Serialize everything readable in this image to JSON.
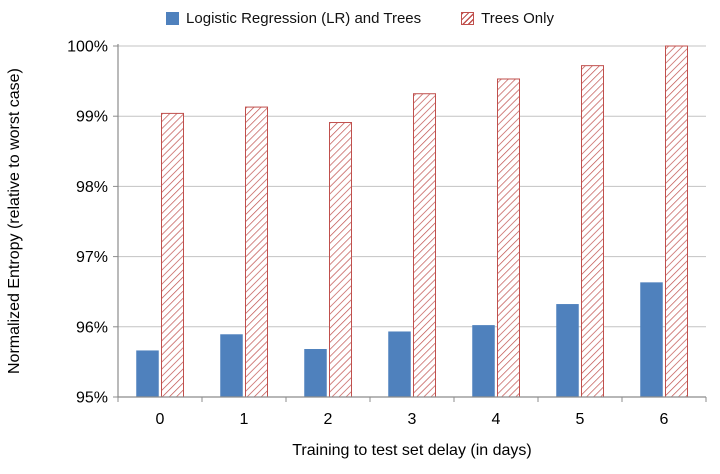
{
  "chart_data": {
    "type": "bar",
    "title": "",
    "xlabel": "Training to test set delay (in days)",
    "ylabel": "Normalized Entropy (relative to worst case)",
    "categories": [
      "0",
      "1",
      "2",
      "3",
      "4",
      "5",
      "6"
    ],
    "series": [
      {
        "name": "Logistic Regression (LR) and Trees",
        "color": "#4f81bd",
        "pattern": "solid",
        "values": [
          95.66,
          95.89,
          95.68,
          95.93,
          96.02,
          96.32,
          96.63
        ]
      },
      {
        "name": "Trees Only",
        "color": "#c0504d",
        "pattern": "diagonal-hatch",
        "values": [
          99.04,
          99.13,
          98.91,
          99.32,
          99.53,
          99.72,
          100.0
        ]
      }
    ],
    "ylim": [
      95,
      100
    ],
    "yticks": [
      95,
      96,
      97,
      98,
      99,
      100
    ],
    "ytick_suffix": "%",
    "grid": true,
    "legend_position": "top"
  },
  "colors": {
    "grid": "#c3c3c3",
    "axis": "#8c8c8c",
    "text": "#000000",
    "background": "#ffffff"
  }
}
